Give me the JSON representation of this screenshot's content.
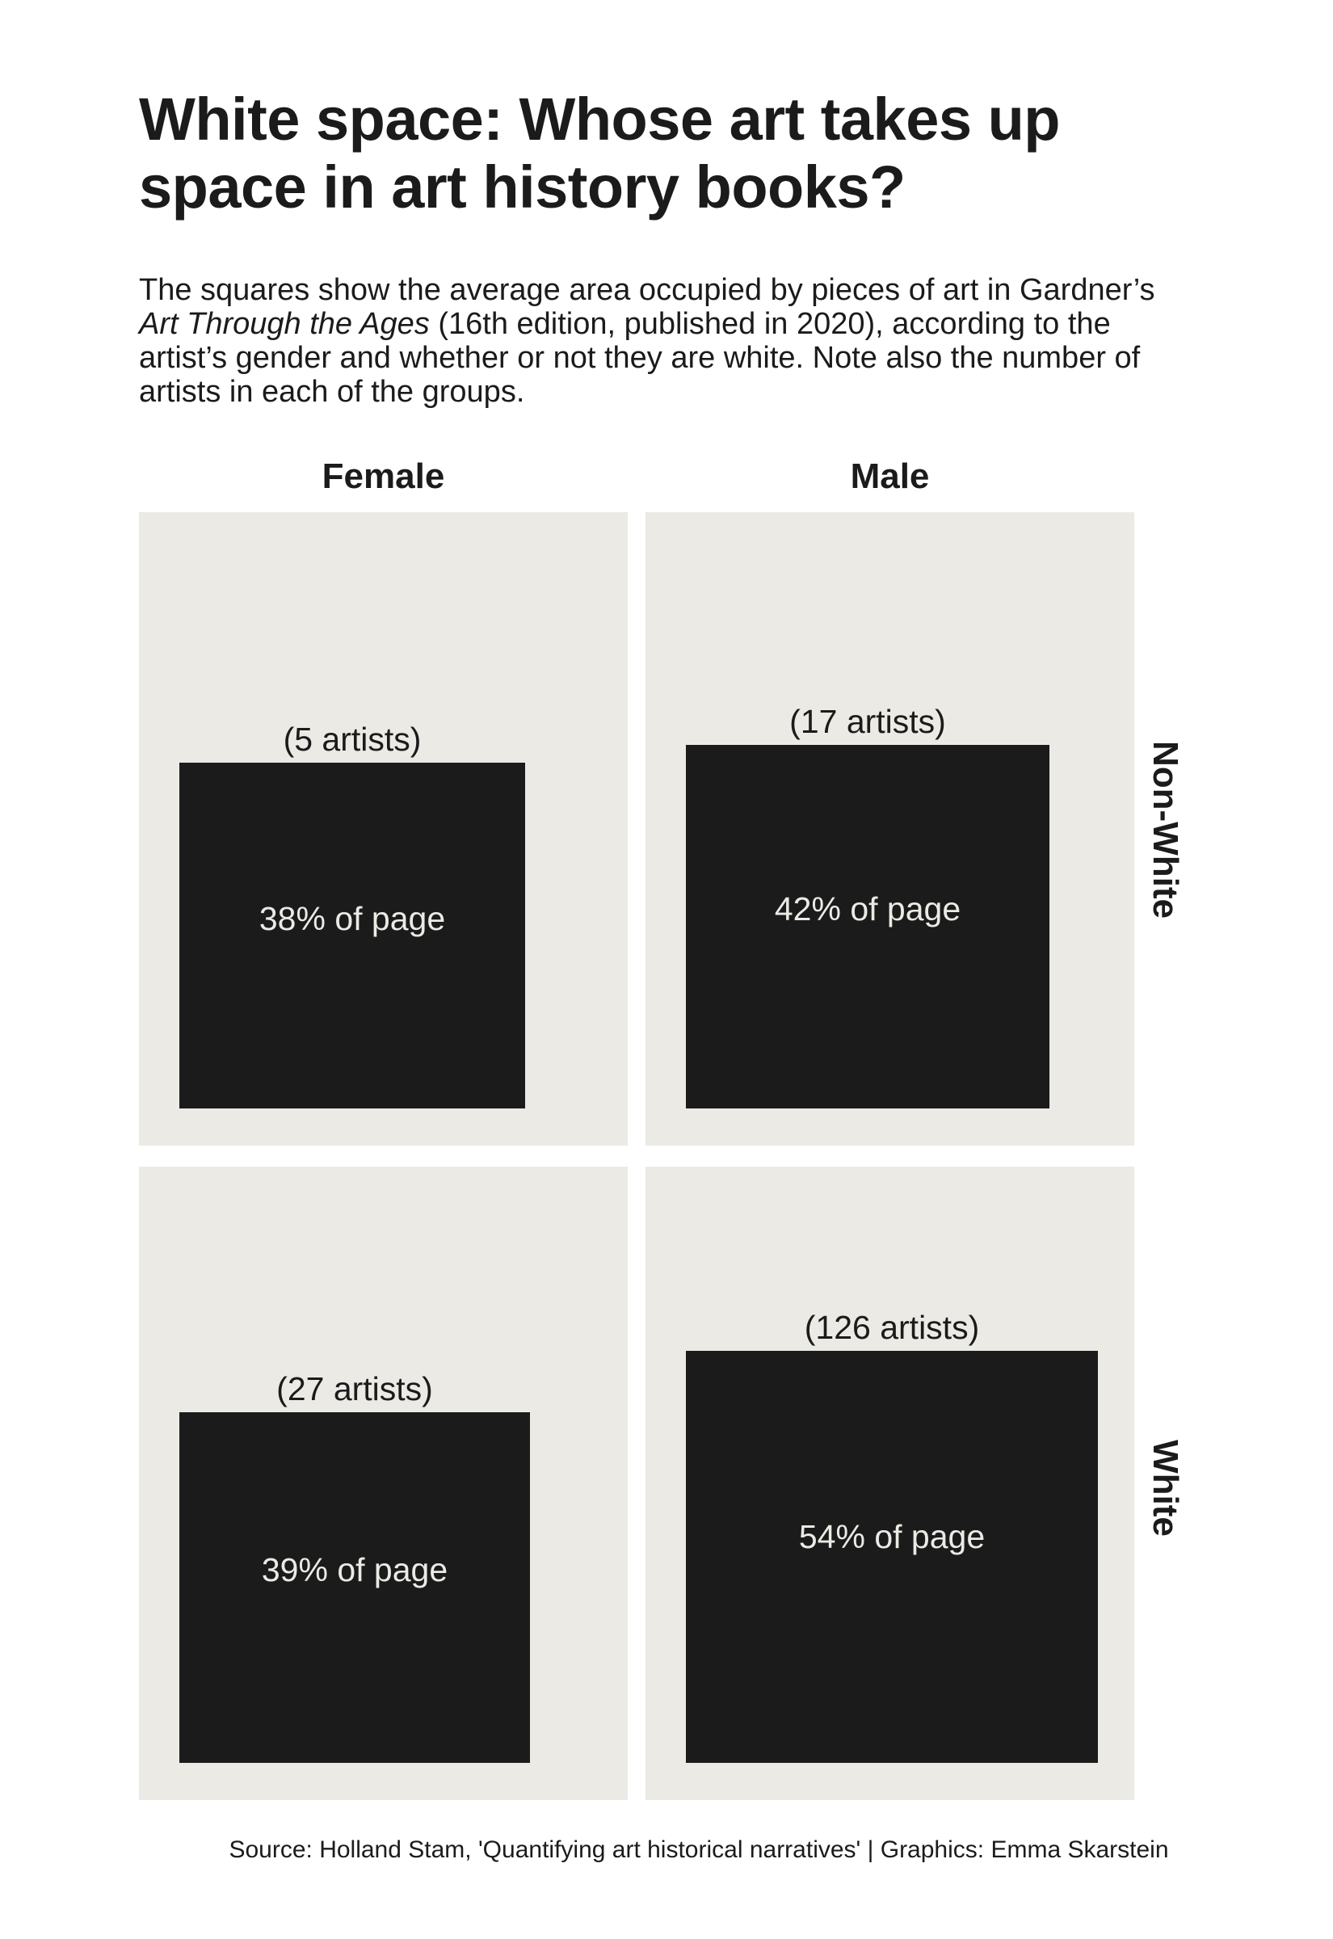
{
  "title": "White space: Whose art takes up space in art history books?",
  "subtitle": {
    "part1": "The squares show the average area occupied by pieces of art in Gardner’s ",
    "book": "Art Through the Ages",
    "part2": " (16th edition, published in 2020), according to the artist’s gender and whether or not they are white. Note also the number of artists in each of the groups."
  },
  "source": "Source: Holland Stam, 'Quantifying art historical narratives' | Graphics: Emma Skarstein",
  "colors": {
    "panel": "#ebeae4",
    "square": "#1b1b1b",
    "text": "#1b1b1b"
  },
  "chart_data": {
    "type": "area squares (facet grid)",
    "columns": [
      "Female",
      "Male"
    ],
    "rows": [
      "Non-White",
      "White"
    ],
    "cells": [
      {
        "gender": "Female",
        "race": "Non-White",
        "artists": 5,
        "artists_label": "(5 artists)",
        "percent_of_page": 38,
        "percent_label": "38% of page"
      },
      {
        "gender": "Male",
        "race": "Non-White",
        "artists": 17,
        "artists_label": "(17 artists)",
        "percent_of_page": 42,
        "percent_label": "42% of page"
      },
      {
        "gender": "Female",
        "race": "White",
        "artists": 27,
        "artists_label": "(27 artists)",
        "percent_of_page": 39,
        "percent_label": "39% of page"
      },
      {
        "gender": "Male",
        "race": "White",
        "artists": 126,
        "artists_label": "(126 artists)",
        "percent_of_page": 54,
        "percent_label": "54% of page"
      }
    ]
  }
}
